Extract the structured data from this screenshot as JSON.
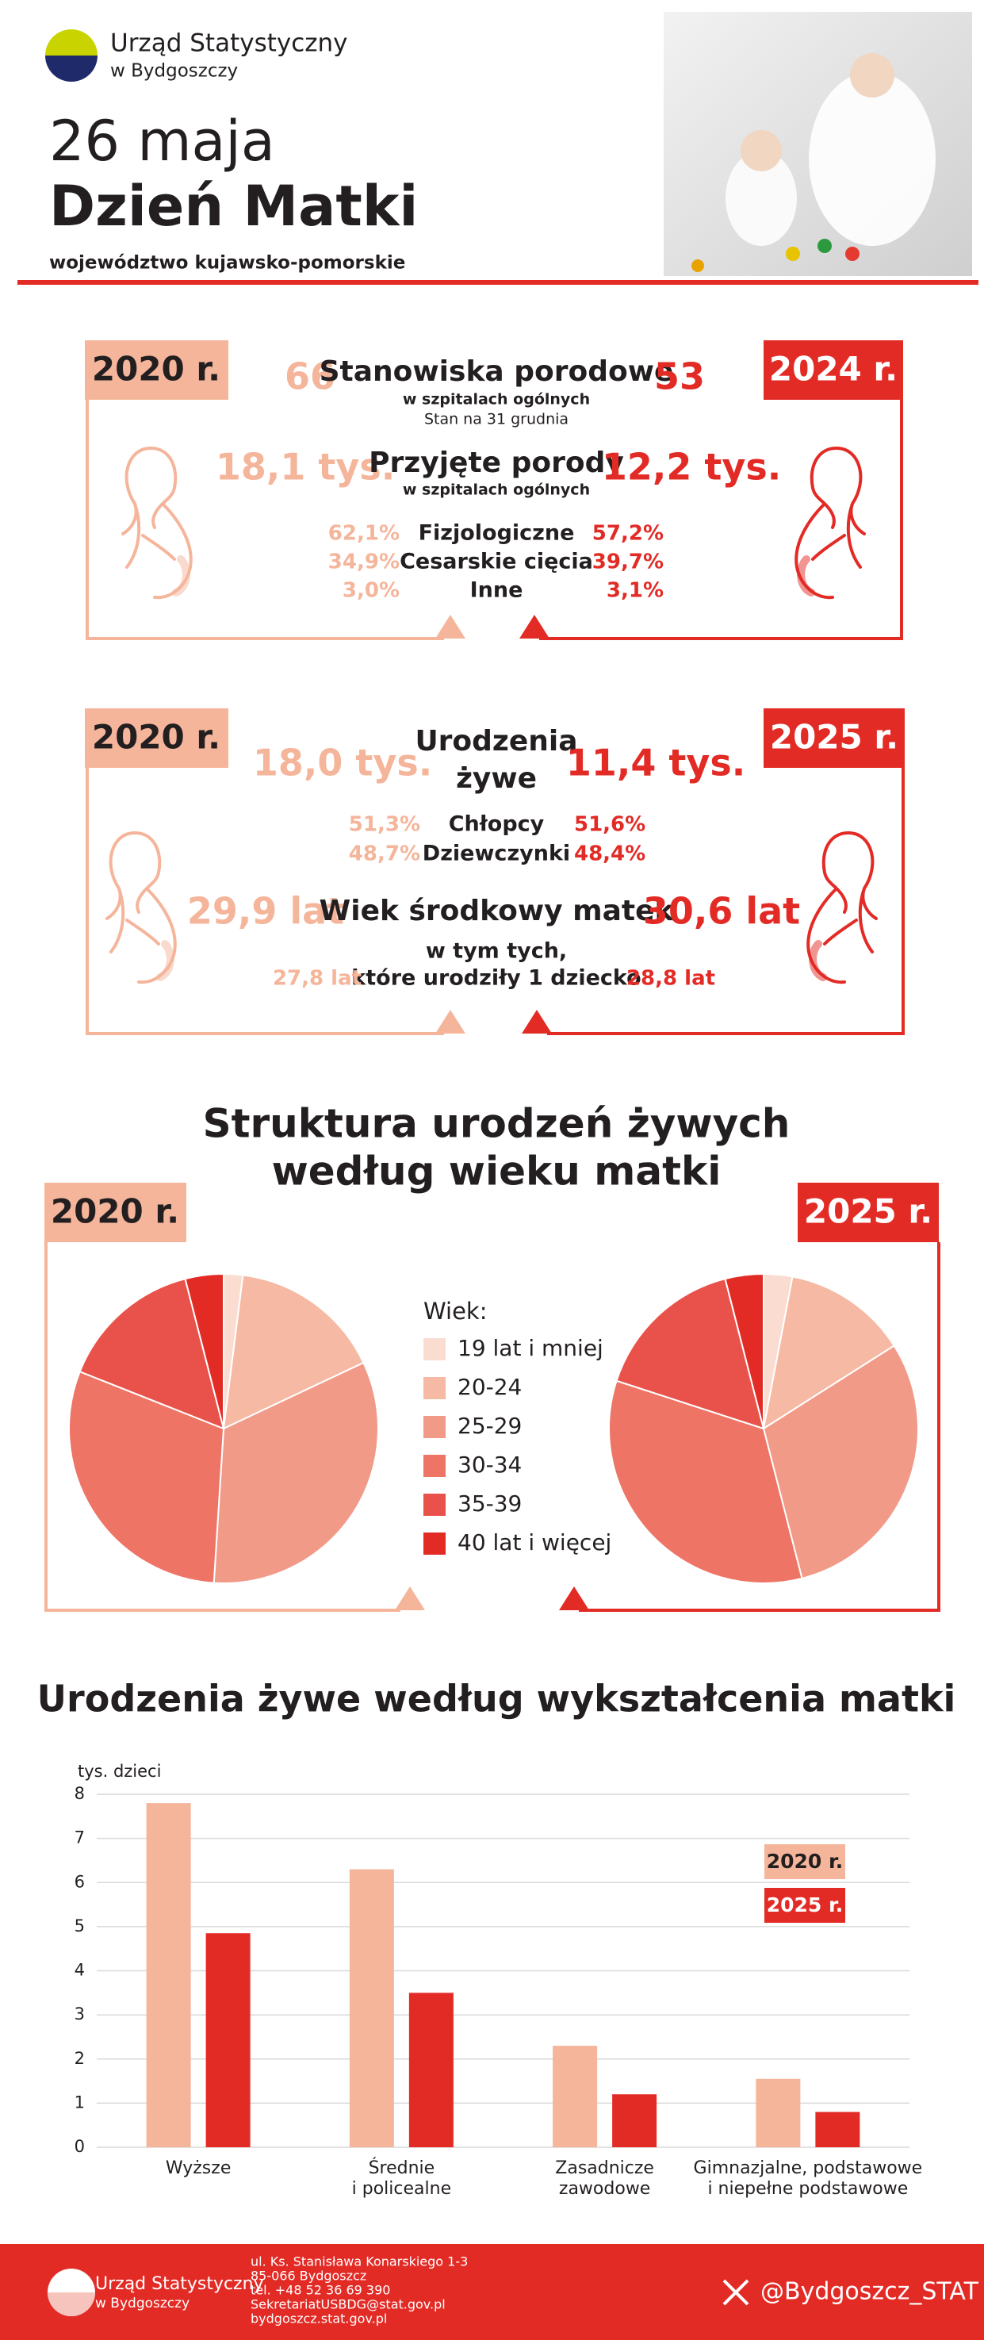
{
  "header": {
    "institution": "Urząd Statystyczny",
    "institution_city": "w Bydgoszczy",
    "date": "26 maja",
    "title": "Dzień Matki",
    "region": "województwo kujawsko-pomorskie"
  },
  "hospitals": {
    "year_left": "2020 r.",
    "year_right": "2024 r.",
    "beds": {
      "left": "66",
      "label": "Stanowiska porodowe",
      "right": "53",
      "note": "w szpitalach ogólnych",
      "note2": "Stan na 31 grudnia"
    },
    "births": {
      "left": "18,1 tys.",
      "label": "Przyjęte porody",
      "right": "12,2 tys.",
      "note": "w szpitalach ogólnych"
    },
    "types": [
      {
        "left": "62,1%",
        "label": "Fizjologiczne",
        "right": "57,2%"
      },
      {
        "left": "34,9%",
        "label": "Cesarskie cięcia",
        "right": "39,7%"
      },
      {
        "left": "3,0%",
        "label": "Inne",
        "right": "3,1%"
      }
    ]
  },
  "births": {
    "year_left": "2020 r.",
    "year_right": "2025 r.",
    "label": [
      "Urodzenia",
      "żywe"
    ],
    "left": "18,0 tys.",
    "right": "11,4 tys.",
    "sex": [
      {
        "left": "51,3%",
        "label": "Chłopcy",
        "right": "51,6%"
      },
      {
        "left": "48,7%",
        "label": "Dziewczynki",
        "right": "48,4%"
      }
    ],
    "median_age": {
      "left": "29,9 lat",
      "label": "Wiek środkowy matek",
      "right": "30,6 lat"
    },
    "first_child": {
      "label1": "w tym tych,",
      "label2": "które urodziły 1 dziecko",
      "left": "27,8 lat",
      "right": "28,8 lat"
    }
  },
  "age_structure": {
    "title": [
      "Struktura urodzeń żywych",
      "według wieku matki"
    ],
    "legend_title": "Wiek:"
  },
  "chart_data": [
    {
      "type": "pie",
      "title": "2020 r.",
      "categories": [
        "19 lat i mniej",
        "20-24",
        "25-29",
        "30-34",
        "35-39",
        "40 lat i więcej"
      ],
      "colors": [
        "#fbdcd0",
        "#f6b9a3",
        "#f29a88",
        "#ee7465",
        "#e9524a",
        "#e32b26"
      ],
      "values": [
        2,
        16,
        33,
        30,
        15,
        4
      ]
    },
    {
      "type": "pie",
      "title": "2025 r.",
      "values": [
        3,
        13,
        30,
        34,
        16,
        4
      ]
    },
    {
      "type": "bar",
      "title": "Urodzenia żywe według wykształcenia matki",
      "ylabel": "tys. dzieci",
      "categories": [
        [
          "Wyższe"
        ],
        [
          "Średnie",
          "i policealne"
        ],
        [
          "Zasadnicze",
          "zawodowe"
        ],
        [
          "Gimnazjalne, podstawowe",
          "i niepełne podstawowe"
        ]
      ],
      "series": [
        {
          "name": "2020 r.",
          "color": "#f5b59b",
          "values": [
            7.8,
            6.3,
            2.3,
            1.55
          ]
        },
        {
          "name": "2025 r.",
          "color": "#e32b26",
          "values": [
            4.85,
            3.5,
            1.2,
            0.8
          ]
        }
      ],
      "ylim": [
        0,
        8
      ],
      "yticks": [
        0,
        1,
        2,
        3,
        4,
        5,
        6,
        7,
        8
      ],
      "grid": true,
      "legend": "right"
    }
  ],
  "footer": {
    "institution": "Urząd Statystyczny",
    "institution_city": "w Bydgoszczy",
    "address": [
      "ul. Ks. Stanisława Konarskiego 1-3",
      "85-066 Bydgoszcz",
      "tel. +48 52 36 69 390",
      "SekretariatUSBDG@stat.gov.pl",
      "bydgoszcz.stat.gov.pl"
    ],
    "social": "@Bydgoszcz_STAT"
  }
}
